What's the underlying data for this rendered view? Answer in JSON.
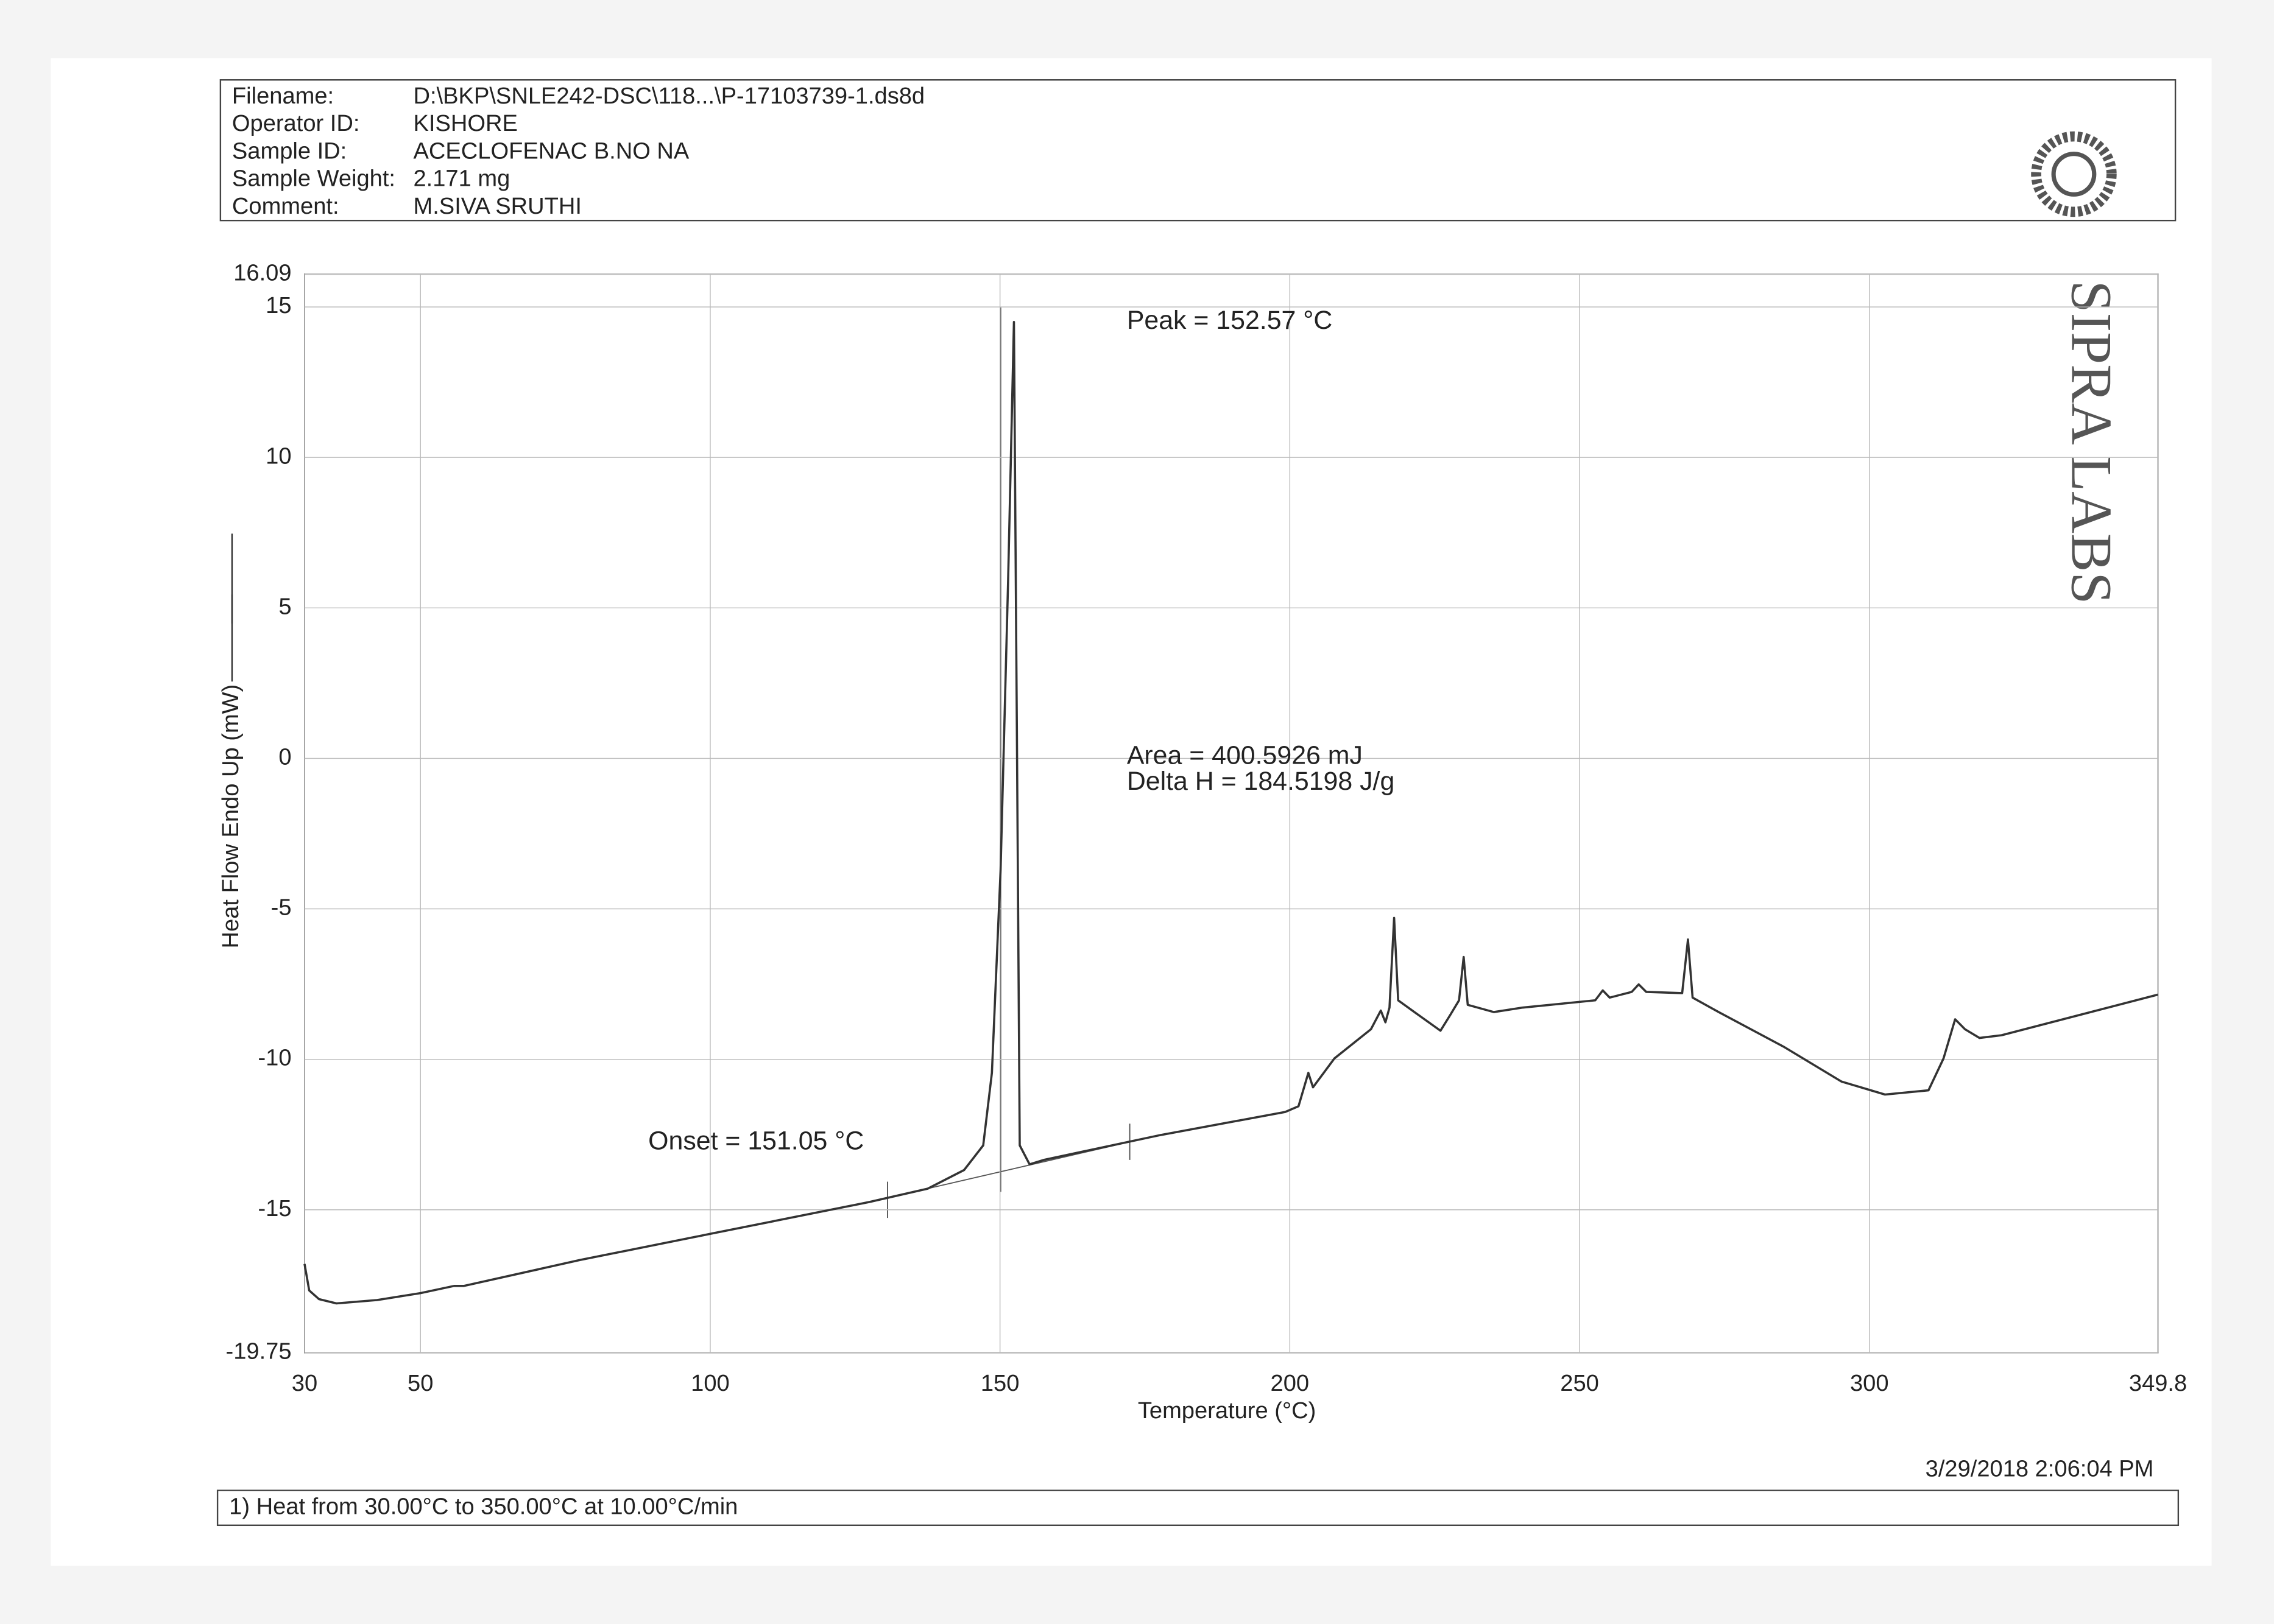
{
  "chart_data": {
    "type": "line",
    "info": [
      {
        "label": "Filename:",
        "value": "D:\\BKP\\SNLE242-DSC\\118...\\P-17103739-1.ds8d"
      },
      {
        "label": "Operator ID:",
        "value": "KISHORE"
      },
      {
        "label": "Sample ID:",
        "value": "ACECLOFENAC B.NO NA"
      },
      {
        "label": "Sample Weight:",
        "value": "2.171 mg"
      },
      {
        "label": "Comment:",
        "value": "M.SIVA SRUTHI"
      }
    ],
    "brand": "SIPRA LABS",
    "x_label": "Temperature (°C)",
    "y_label": "Heat Flow Endo Up (mW)",
    "annotations": [
      "Peak = 152.57 °C",
      "Area = 400.5926 mJ",
      "Delta H = 184.5198 J/g",
      "Onset = 151.05 °C"
    ],
    "method": "1)  Heat from 30.00°C to 350.00°C at 10.00°C/min",
    "timestamp": "3/29/2018 2:06:04 PM",
    "xlim": [
      30,
      349.8
    ],
    "xticks": [
      30,
      50,
      100,
      150,
      200,
      250,
      300,
      349.8
    ],
    "ylim": [
      -19.75,
      16.09
    ],
    "yticks": [
      16.09,
      15,
      10,
      5,
      0,
      -5,
      -10,
      -15,
      -19.75
    ],
    "grid": true,
    "x": [
      30,
      30.8,
      32.5,
      35.5,
      42.5,
      50,
      55.8,
      57.5,
      77.5,
      100,
      127.5,
      137.5,
      143.8,
      147.1,
      148.6,
      150.1,
      151.4,
      152.4,
      152.9,
      153.4,
      155.1,
      157.6,
      177.6,
      199.2,
      201.5,
      203.2,
      204,
      207.7,
      214,
      215.7,
      216.5,
      217.2,
      218,
      218.7,
      221.5,
      226,
      227.7,
      229.2,
      230,
      230.7,
      235.2,
      240.2,
      252.7,
      254,
      255.2,
      259,
      260.2,
      261.5,
      267.7,
      268.7,
      269.5,
      274,
      285.2,
      295.2,
      302.7,
      310.2,
      312.8,
      314.8,
      316.5,
      319,
      322.8,
      349.8
    ],
    "series": [
      {
        "name": "Heat Flow",
        "color": "#333333",
        "values": [
          -16.8,
          -17.68,
          -17.97,
          -18.11,
          -18.0,
          -17.77,
          -17.53,
          -17.53,
          -16.67,
          -15.8,
          -14.74,
          -14.3,
          -13.68,
          -12.86,
          -10.45,
          -3.7,
          5.93,
          14.5,
          1.11,
          -12.86,
          -13.49,
          -13.34,
          -12.52,
          -11.75,
          -11.56,
          -10.45,
          -10.93,
          -9.97,
          -9.0,
          -8.38,
          -8.77,
          -8.28,
          -5.3,
          -8.04,
          -8.43,
          -9.05,
          -8.52,
          -8.04,
          -6.6,
          -8.19,
          -8.43,
          -8.28,
          -8.04,
          -7.71,
          -7.95,
          -7.76,
          -7.51,
          -7.76,
          -7.8,
          -6.02,
          -7.95,
          -8.43,
          -9.58,
          -10.74,
          -11.17,
          -11.03,
          -9.97,
          -8.67,
          -9.0,
          -9.29,
          -9.2,
          -7.85
        ]
      }
    ]
  }
}
